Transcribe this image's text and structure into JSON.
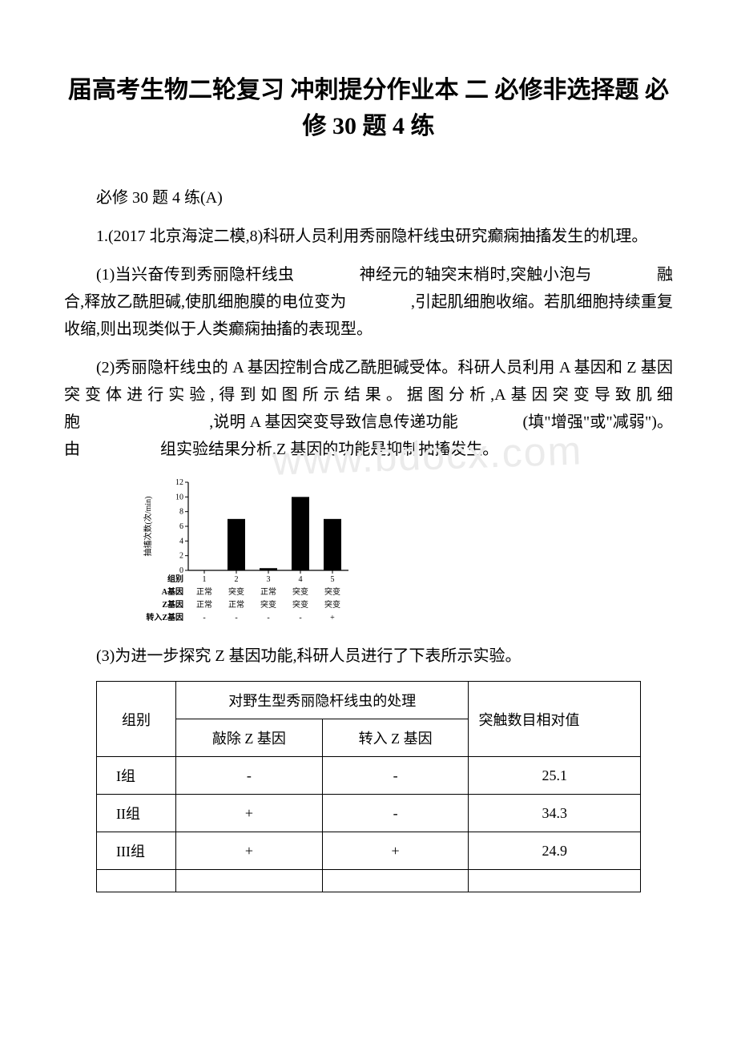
{
  "title": "届高考生物二轮复习 冲刺提分作业本 二 必修非选择题 必修 30 题 4 练",
  "p1": "必修 30 题 4 练(A)",
  "p2": "1.(2017 北京海淀二模,8)科研人员利用秀丽隐杆线虫研究癫痫抽搐发生的机理。",
  "p3": "(1)当兴奋传到秀丽隐杆线虫　　　　神经元的轴突末梢时,突触小泡与　　　　融合,释放乙酰胆碱,使肌细胞膜的电位变为　　　　,引起肌细胞收缩。若肌细胞持续重复收缩,则出现类似于人类癫痫抽搐的表现型。",
  "p4": "(2)秀丽隐杆线虫的 A 基因控制合成乙酰胆碱受体。科研人员利用 A 基因和 Z 基因突变体进行实验,得到如图所示结果。据图分析,A基因突变导致肌细胞　　　　　　　　,说明 A 基因突变导致信息传递功能　　　　(填\"增强\"或\"减弱\")。由　　　　　组实验结果分析,Z 基因的功能是抑制抽搐发生。",
  "p5": "(3)为进一步探究 Z 基因功能,科研人员进行了下表所示实验。",
  "chart": {
    "type": "bar",
    "ylabel": "抽搐次数(次/min)",
    "ylim": [
      0,
      12
    ],
    "ytick_step": 2,
    "categories": [
      "1",
      "2",
      "3",
      "4",
      "5"
    ],
    "values": [
      0,
      7,
      0.3,
      10,
      7
    ],
    "bar_color": "#000000",
    "axis_color": "#000000",
    "tick_font_size": 10,
    "label_font_size": 10,
    "row_labels": [
      "组别",
      "A基因",
      "Z基因",
      "转入Z基因"
    ],
    "row_data": {
      "A基因": [
        "正常",
        "突变",
        "正常",
        "突变",
        "突变"
      ],
      "Z基因": [
        "正常",
        "正常",
        "突变",
        "突变",
        "突变"
      ],
      "转入Z基因": [
        "-",
        "-",
        "-",
        "-",
        "+"
      ]
    }
  },
  "table": {
    "header_group_label": "组别",
    "header_span_label": "对野生型秀丽隐杆线虫的处理",
    "header_col3": "突触数目相对值",
    "sub_col1": "敲除 Z 基因",
    "sub_col2": "转入 Z 基因",
    "rows": [
      {
        "g": "I组",
        "c1": "-",
        "c2": "-",
        "v": "25.1"
      },
      {
        "g": "II组",
        "c1": "+",
        "c2": "-",
        "v": "34.3"
      },
      {
        "g": "III组",
        "c1": "+",
        "c2": "+",
        "v": "24.9"
      }
    ]
  },
  "watermark": "www.bdocx.com"
}
